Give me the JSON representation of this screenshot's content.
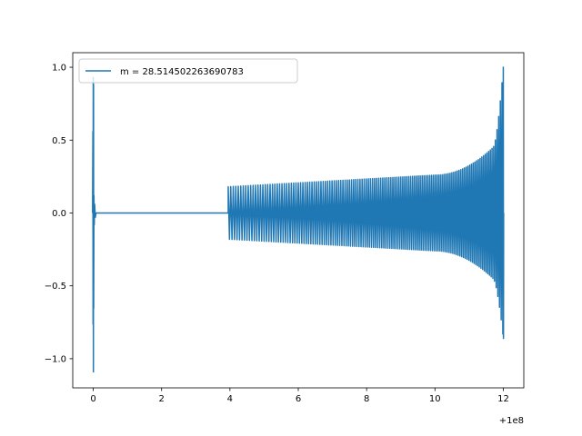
{
  "chart_data": {
    "type": "line",
    "title": "",
    "xlabel": "",
    "ylabel": "",
    "x_offset_label": "+1e8",
    "xlim": [
      -0.6,
      12.6
    ],
    "ylim": [
      -1.2,
      1.1
    ],
    "xticks": [
      0,
      2,
      4,
      6,
      8,
      10,
      12
    ],
    "xtick_labels": [
      "0",
      "2",
      "4",
      "6",
      "8",
      "10",
      "12"
    ],
    "yticks": [
      -1.0,
      -0.5,
      0.0,
      0.5,
      1.0
    ],
    "ytick_labels": [
      "−1.0",
      "−0.5",
      "0.0",
      "0.5",
      "1.0"
    ],
    "grid": false,
    "legend": {
      "position": "top-left"
    },
    "series": [
      {
        "name": "m = 28.514502263690783",
        "color": "#1f77b4",
        "segments": [
          {
            "kind": "burst",
            "x_center": 0.0,
            "y_max": 0.93,
            "y_min": -1.09
          },
          {
            "kind": "flat",
            "x_start": 0.1,
            "x_end": 3.95,
            "y": 0.0
          },
          {
            "kind": "chirp",
            "x_start": 3.95,
            "x_end": 12.0,
            "amp_start": 0.18,
            "amp_at_10": 0.26,
            "peak_max": 1.0,
            "peak_min": -0.86
          }
        ]
      }
    ]
  }
}
